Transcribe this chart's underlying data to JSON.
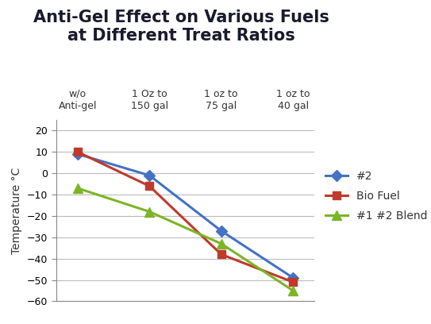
{
  "title": "Anti-Gel Effect on Various Fuels\nat Different Treat Ratios",
  "ylabel": "Temperature °C",
  "x_positions": [
    0,
    1,
    2,
    3
  ],
  "x_tick_labels": [
    "w/o\nAnti-gel",
    "1 Oz to\n150 gal",
    "1 oz to\n75 gal",
    "1 oz to\n40 gal"
  ],
  "series": [
    {
      "label": "#2",
      "color": "#4472C4",
      "marker": "D",
      "markersize": 7,
      "linewidth": 2.2,
      "values": [
        9,
        -1,
        -27,
        -49
      ]
    },
    {
      "label": "Bio Fuel",
      "color": "#C0392B",
      "marker": "s",
      "markersize": 7,
      "linewidth": 2.2,
      "values": [
        10,
        -6,
        -38,
        -51
      ]
    },
    {
      "label": "#1 #2 Blend",
      "color": "#7CB526",
      "marker": "^",
      "markersize": 8,
      "linewidth": 2.2,
      "values": [
        -7,
        -18,
        -33,
        -55
      ]
    }
  ],
  "ylim": [
    -60,
    25
  ],
  "yticks": [
    -60,
    -50,
    -40,
    -30,
    -20,
    -10,
    0,
    10,
    20
  ],
  "background_color": "#FFFFFF",
  "plot_bg_color": "#FFFFFF",
  "grid_color": "#BBBBBB",
  "title_fontsize": 15,
  "axis_label_fontsize": 10,
  "tick_fontsize": 9,
  "legend_fontsize": 10,
  "x_label_fontsize": 9
}
